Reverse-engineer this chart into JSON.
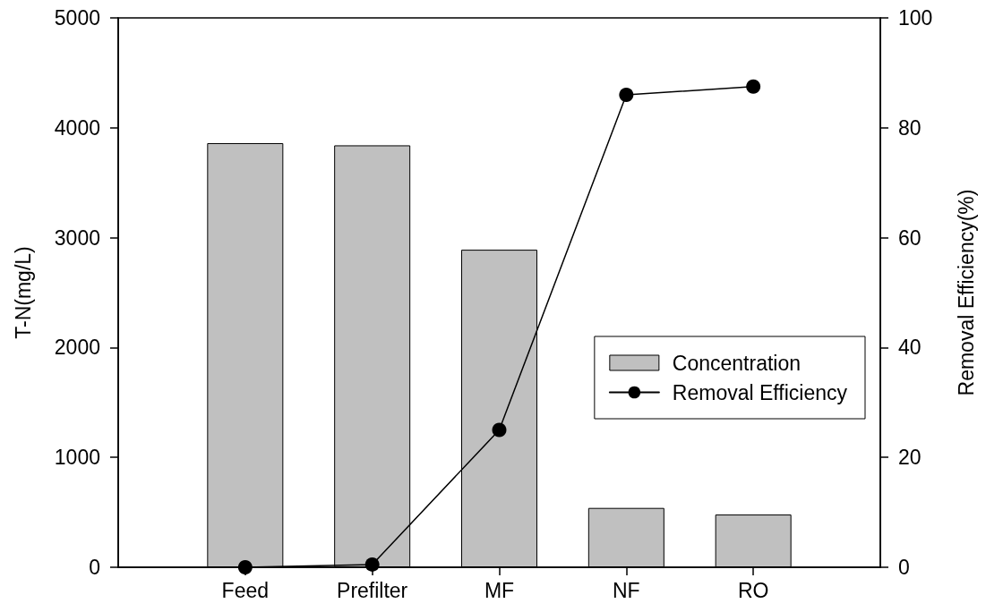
{
  "chart_data": {
    "type": "bar",
    "categories": [
      "Feed",
      "Prefilter",
      "MF",
      "NF",
      "RO"
    ],
    "ylabel": "T-N(mg/L)",
    "y2label": "Removal Efficiency(%)",
    "ylim": [
      0,
      5000
    ],
    "yticks": [
      0,
      1000,
      2000,
      3000,
      4000,
      5000
    ],
    "y2lim": [
      0,
      100
    ],
    "y2ticks": [
      0,
      20,
      40,
      60,
      80,
      100
    ],
    "series": [
      {
        "name": "Concentration",
        "color": "#c0c0c0",
        "values": [
          3860,
          3840,
          2890,
          540,
          480
        ]
      },
      {
        "name": "Removal Efficiency",
        "type": "line",
        "axis": "y2",
        "color": "#000000",
        "values": [
          0,
          0.5,
          25,
          86,
          87.5
        ]
      }
    ],
    "marker": "circle",
    "legend": "right",
    "grid": false
  }
}
